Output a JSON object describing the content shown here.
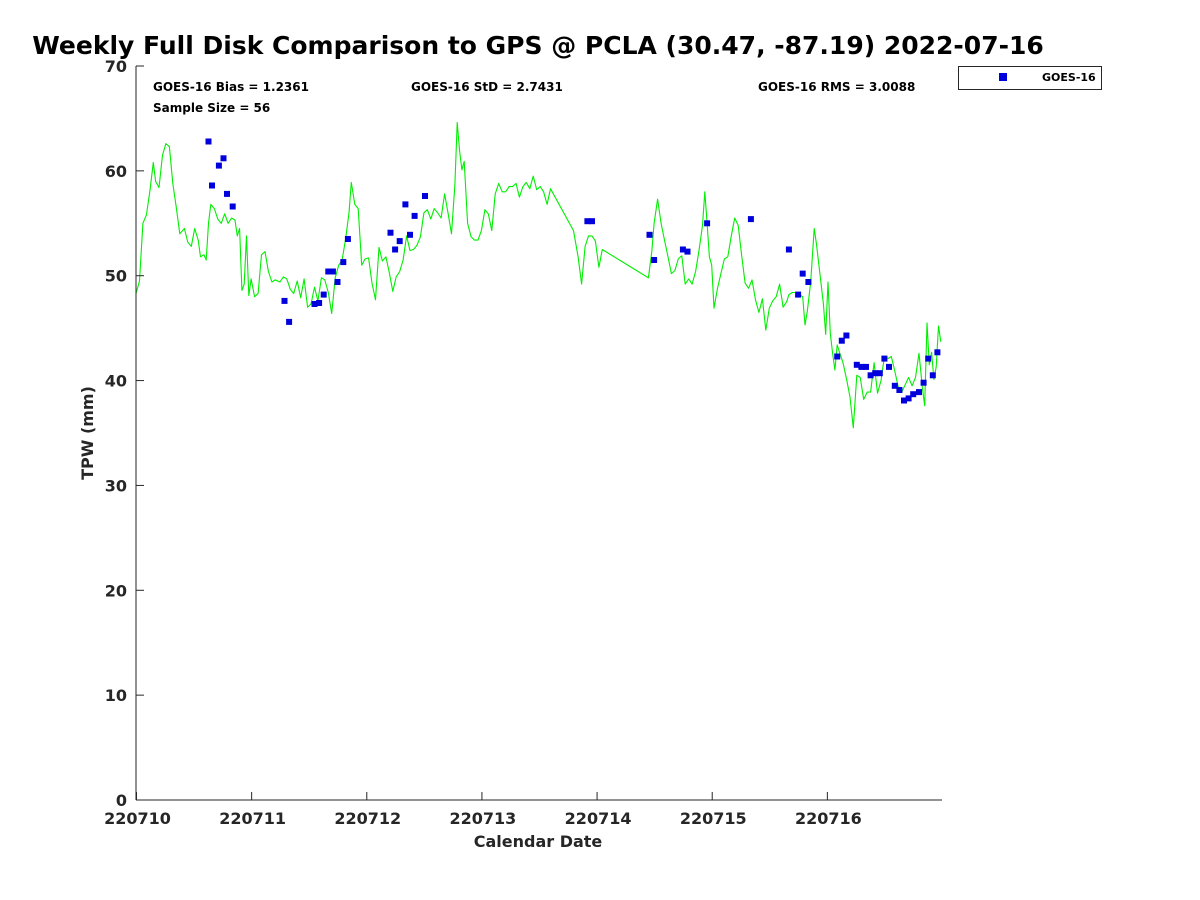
{
  "chart_data": {
    "type": "scatter",
    "title": "Weekly Full Disk Comparison to GPS @ PCLA (30.47, -87.19) 2022-07-16",
    "xlabel": "Calendar Date",
    "ylabel": "TPW (mm)",
    "xlim": [
      0,
      7
    ],
    "ylim": [
      0,
      70
    ],
    "x_ticks": [
      {
        "value": 0,
        "label": "220710"
      },
      {
        "value": 1,
        "label": "220711"
      },
      {
        "value": 2,
        "label": "220712"
      },
      {
        "value": 3,
        "label": "220713"
      },
      {
        "value": 4,
        "label": "220714"
      },
      {
        "value": 5,
        "label": "220715"
      },
      {
        "value": 6,
        "label": "220716"
      }
    ],
    "y_ticks": [
      0,
      10,
      20,
      30,
      40,
      50,
      60,
      70
    ],
    "grid": false,
    "legend_position": "top-right, outside plot",
    "stats": {
      "bias": "GOES-16 Bias = 1.2361",
      "std": "GOES-16 StD = 2.7431",
      "rms": "GOES-16 RMS = 3.0088",
      "sample": "Sample Size = 56"
    },
    "series": [
      {
        "name": "GOES-16",
        "kind": "scatter",
        "marker": "square",
        "color": "#0000dd",
        "points": [
          [
            0.63,
            62.8
          ],
          [
            0.66,
            58.6
          ],
          [
            0.72,
            60.5
          ],
          [
            0.76,
            61.2
          ],
          [
            0.79,
            57.8
          ],
          [
            0.84,
            56.6
          ],
          [
            1.29,
            47.6
          ],
          [
            1.33,
            45.6
          ],
          [
            1.55,
            47.3
          ],
          [
            1.59,
            47.4
          ],
          [
            1.63,
            48.2
          ],
          [
            1.67,
            50.4
          ],
          [
            1.71,
            50.4
          ],
          [
            1.75,
            49.4
          ],
          [
            1.8,
            51.3
          ],
          [
            1.84,
            53.5
          ],
          [
            2.21,
            54.1
          ],
          [
            2.25,
            52.5
          ],
          [
            2.29,
            53.3
          ],
          [
            2.34,
            56.8
          ],
          [
            2.38,
            53.9
          ],
          [
            2.42,
            55.7
          ],
          [
            2.51,
            57.6
          ],
          [
            3.92,
            55.2
          ],
          [
            3.96,
            55.2
          ],
          [
            4.46,
            53.9
          ],
          [
            4.5,
            51.5
          ],
          [
            4.75,
            52.5
          ],
          [
            4.79,
            52.3
          ],
          [
            4.96,
            55.0
          ],
          [
            5.34,
            55.4
          ],
          [
            5.67,
            52.5
          ],
          [
            5.75,
            48.2
          ],
          [
            5.79,
            50.2
          ],
          [
            5.84,
            49.4
          ],
          [
            6.09,
            42.3
          ],
          [
            6.13,
            43.8
          ],
          [
            6.17,
            44.3
          ],
          [
            6.26,
            41.5
          ],
          [
            6.3,
            41.3
          ],
          [
            6.34,
            41.3
          ],
          [
            6.38,
            40.5
          ],
          [
            6.42,
            40.7
          ],
          [
            6.46,
            40.7
          ],
          [
            6.5,
            42.1
          ],
          [
            6.54,
            41.3
          ],
          [
            6.59,
            39.5
          ],
          [
            6.63,
            39.1
          ],
          [
            6.67,
            38.1
          ],
          [
            6.71,
            38.3
          ],
          [
            6.75,
            38.7
          ],
          [
            6.8,
            38.9
          ],
          [
            6.84,
            39.8
          ],
          [
            6.88,
            42.1
          ],
          [
            6.92,
            40.5
          ],
          [
            6.96,
            42.7
          ]
        ]
      },
      {
        "kind": "line",
        "color": "#00ee00",
        "points": [
          [
            0.0,
            48.3
          ],
          [
            0.03,
            49.5
          ],
          [
            0.06,
            55.0
          ],
          [
            0.09,
            55.8
          ],
          [
            0.12,
            58.0
          ],
          [
            0.15,
            60.8
          ],
          [
            0.17,
            59.0
          ],
          [
            0.2,
            58.4
          ],
          [
            0.23,
            61.5
          ],
          [
            0.26,
            62.6
          ],
          [
            0.29,
            62.3
          ],
          [
            0.32,
            58.8
          ],
          [
            0.35,
            56.5
          ],
          [
            0.38,
            54.0
          ],
          [
            0.42,
            54.5
          ],
          [
            0.45,
            53.2
          ],
          [
            0.48,
            52.8
          ],
          [
            0.51,
            54.5
          ],
          [
            0.54,
            53.4
          ],
          [
            0.56,
            51.8
          ],
          [
            0.59,
            52.0
          ],
          [
            0.61,
            51.5
          ],
          [
            0.63,
            55.0
          ],
          [
            0.65,
            56.8
          ],
          [
            0.68,
            56.4
          ],
          [
            0.71,
            55.4
          ],
          [
            0.74,
            55.0
          ],
          [
            0.77,
            55.9
          ],
          [
            0.8,
            55.0
          ],
          [
            0.83,
            55.5
          ],
          [
            0.86,
            55.3
          ],
          [
            0.88,
            53.8
          ],
          [
            0.9,
            54.5
          ],
          [
            0.92,
            48.6
          ],
          [
            0.94,
            49.2
          ],
          [
            0.96,
            53.8
          ],
          [
            0.98,
            48.1
          ],
          [
            1.0,
            49.7
          ],
          [
            1.03,
            48.0
          ],
          [
            1.06,
            48.3
          ],
          [
            1.09,
            52.0
          ],
          [
            1.12,
            52.3
          ],
          [
            1.15,
            50.4
          ],
          [
            1.18,
            49.4
          ],
          [
            1.21,
            49.6
          ],
          [
            1.25,
            49.4
          ],
          [
            1.28,
            49.9
          ],
          [
            1.31,
            49.7
          ],
          [
            1.34,
            48.7
          ],
          [
            1.37,
            48.3
          ],
          [
            1.4,
            49.5
          ],
          [
            1.43,
            47.9
          ],
          [
            1.46,
            49.7
          ],
          [
            1.49,
            47.0
          ],
          [
            1.52,
            47.3
          ],
          [
            1.55,
            48.9
          ],
          [
            1.58,
            47.6
          ],
          [
            1.61,
            49.8
          ],
          [
            1.64,
            49.6
          ],
          [
            1.67,
            48.4
          ],
          [
            1.7,
            46.4
          ],
          [
            1.73,
            49.8
          ],
          [
            1.76,
            51.0
          ],
          [
            1.79,
            51.5
          ],
          [
            1.82,
            53.5
          ],
          [
            1.85,
            56.0
          ],
          [
            1.87,
            58.9
          ],
          [
            1.9,
            56.8
          ],
          [
            1.93,
            56.4
          ],
          [
            1.96,
            51.0
          ],
          [
            1.99,
            51.6
          ],
          [
            2.02,
            51.7
          ],
          [
            2.05,
            49.3
          ],
          [
            2.08,
            47.7
          ],
          [
            2.11,
            52.7
          ],
          [
            2.14,
            51.4
          ],
          [
            2.17,
            51.8
          ],
          [
            2.2,
            50.3
          ],
          [
            2.23,
            48.5
          ],
          [
            2.26,
            49.9
          ],
          [
            2.29,
            50.4
          ],
          [
            2.32,
            51.5
          ],
          [
            2.35,
            53.8
          ],
          [
            2.38,
            52.4
          ],
          [
            2.41,
            52.5
          ],
          [
            2.44,
            52.9
          ],
          [
            2.47,
            53.7
          ],
          [
            2.5,
            56.0
          ],
          [
            2.53,
            56.3
          ],
          [
            2.56,
            55.4
          ],
          [
            2.59,
            56.4
          ],
          [
            2.62,
            56.0
          ],
          [
            2.65,
            55.5
          ],
          [
            2.68,
            57.8
          ],
          [
            2.71,
            56.0
          ],
          [
            2.74,
            54.0
          ],
          [
            2.77,
            58.7
          ],
          [
            2.79,
            64.6
          ],
          [
            2.81,
            61.9
          ],
          [
            2.83,
            60.1
          ],
          [
            2.85,
            60.9
          ],
          [
            2.88,
            55.0
          ],
          [
            2.91,
            53.7
          ],
          [
            2.94,
            53.4
          ],
          [
            2.97,
            53.4
          ],
          [
            3.0,
            54.3
          ],
          [
            3.03,
            56.3
          ],
          [
            3.06,
            55.9
          ],
          [
            3.09,
            54.3
          ],
          [
            3.12,
            57.8
          ],
          [
            3.15,
            58.8
          ],
          [
            3.18,
            58.0
          ],
          [
            3.21,
            58.0
          ],
          [
            3.24,
            58.5
          ],
          [
            3.27,
            58.5
          ],
          [
            3.3,
            58.8
          ],
          [
            3.33,
            57.5
          ],
          [
            3.36,
            58.5
          ],
          [
            3.39,
            58.9
          ],
          [
            3.42,
            58.3
          ],
          [
            3.45,
            59.5
          ],
          [
            3.48,
            58.2
          ],
          [
            3.51,
            58.5
          ],
          [
            3.54,
            58.0
          ],
          [
            3.57,
            56.8
          ],
          [
            3.6,
            58.3
          ],
          [
            3.8,
            54.3
          ],
          [
            3.84,
            51.8
          ],
          [
            3.87,
            49.2
          ],
          [
            3.9,
            52.8
          ],
          [
            3.93,
            53.8
          ],
          [
            3.96,
            53.8
          ],
          [
            3.99,
            53.3
          ],
          [
            4.02,
            50.8
          ],
          [
            4.05,
            52.5
          ],
          [
            4.45,
            49.8
          ],
          [
            4.48,
            52.3
          ],
          [
            4.5,
            55.0
          ],
          [
            4.53,
            57.3
          ],
          [
            4.56,
            55.0
          ],
          [
            4.59,
            53.4
          ],
          [
            4.62,
            51.8
          ],
          [
            4.65,
            50.2
          ],
          [
            4.68,
            50.5
          ],
          [
            4.71,
            51.6
          ],
          [
            4.74,
            51.9
          ],
          [
            4.77,
            49.2
          ],
          [
            4.8,
            49.7
          ],
          [
            4.83,
            49.2
          ],
          [
            4.86,
            50.4
          ],
          [
            4.89,
            52.4
          ],
          [
            4.92,
            54.8
          ],
          [
            4.94,
            58.0
          ],
          [
            4.96,
            55.0
          ],
          [
            4.98,
            51.8
          ],
          [
            5.0,
            51.0
          ],
          [
            5.02,
            46.9
          ],
          [
            5.05,
            48.8
          ],
          [
            5.08,
            50.2
          ],
          [
            5.11,
            51.6
          ],
          [
            5.14,
            51.8
          ],
          [
            5.17,
            53.8
          ],
          [
            5.2,
            55.5
          ],
          [
            5.23,
            54.8
          ],
          [
            5.26,
            51.9
          ],
          [
            5.29,
            49.3
          ],
          [
            5.32,
            48.8
          ],
          [
            5.35,
            49.6
          ],
          [
            5.38,
            47.7
          ],
          [
            5.41,
            46.5
          ],
          [
            5.44,
            47.8
          ],
          [
            5.47,
            44.8
          ],
          [
            5.5,
            46.9
          ],
          [
            5.53,
            47.6
          ],
          [
            5.56,
            48.0
          ],
          [
            5.59,
            49.2
          ],
          [
            5.62,
            47.0
          ],
          [
            5.65,
            47.5
          ],
          [
            5.67,
            48.2
          ],
          [
            5.7,
            48.4
          ],
          [
            5.73,
            48.4
          ],
          [
            5.76,
            48.2
          ],
          [
            5.79,
            48.0
          ],
          [
            5.81,
            45.3
          ],
          [
            5.83,
            46.6
          ],
          [
            5.86,
            49.4
          ],
          [
            5.89,
            54.5
          ],
          [
            5.91,
            53.0
          ],
          [
            5.94,
            50.2
          ],
          [
            5.97,
            47.3
          ],
          [
            5.99,
            44.4
          ],
          [
            6.01,
            49.4
          ],
          [
            6.03,
            44.5
          ],
          [
            6.05,
            42.6
          ],
          [
            6.07,
            41.0
          ],
          [
            6.09,
            43.4
          ],
          [
            6.11,
            42.7
          ],
          [
            6.14,
            41.7
          ],
          [
            6.17,
            40.2
          ],
          [
            6.2,
            38.5
          ],
          [
            6.23,
            35.5
          ],
          [
            6.26,
            40.5
          ],
          [
            6.29,
            40.3
          ],
          [
            6.32,
            38.2
          ],
          [
            6.35,
            38.9
          ],
          [
            6.38,
            38.9
          ],
          [
            6.41,
            41.7
          ],
          [
            6.44,
            38.8
          ],
          [
            6.47,
            40.0
          ],
          [
            6.5,
            42.3
          ],
          [
            6.53,
            42.1
          ],
          [
            6.56,
            42.3
          ],
          [
            6.59,
            40.9
          ],
          [
            6.62,
            39.4
          ],
          [
            6.65,
            38.9
          ],
          [
            6.68,
            39.6
          ],
          [
            6.71,
            40.3
          ],
          [
            6.74,
            39.5
          ],
          [
            6.77,
            40.3
          ],
          [
            6.8,
            42.6
          ],
          [
            6.83,
            39.3
          ],
          [
            6.85,
            37.6
          ],
          [
            6.87,
            45.5
          ],
          [
            6.89,
            41.5
          ],
          [
            6.91,
            42.7
          ],
          [
            6.93,
            40.1
          ],
          [
            6.95,
            41.3
          ],
          [
            6.97,
            45.2
          ],
          [
            6.99,
            43.7
          ]
        ]
      }
    ]
  }
}
